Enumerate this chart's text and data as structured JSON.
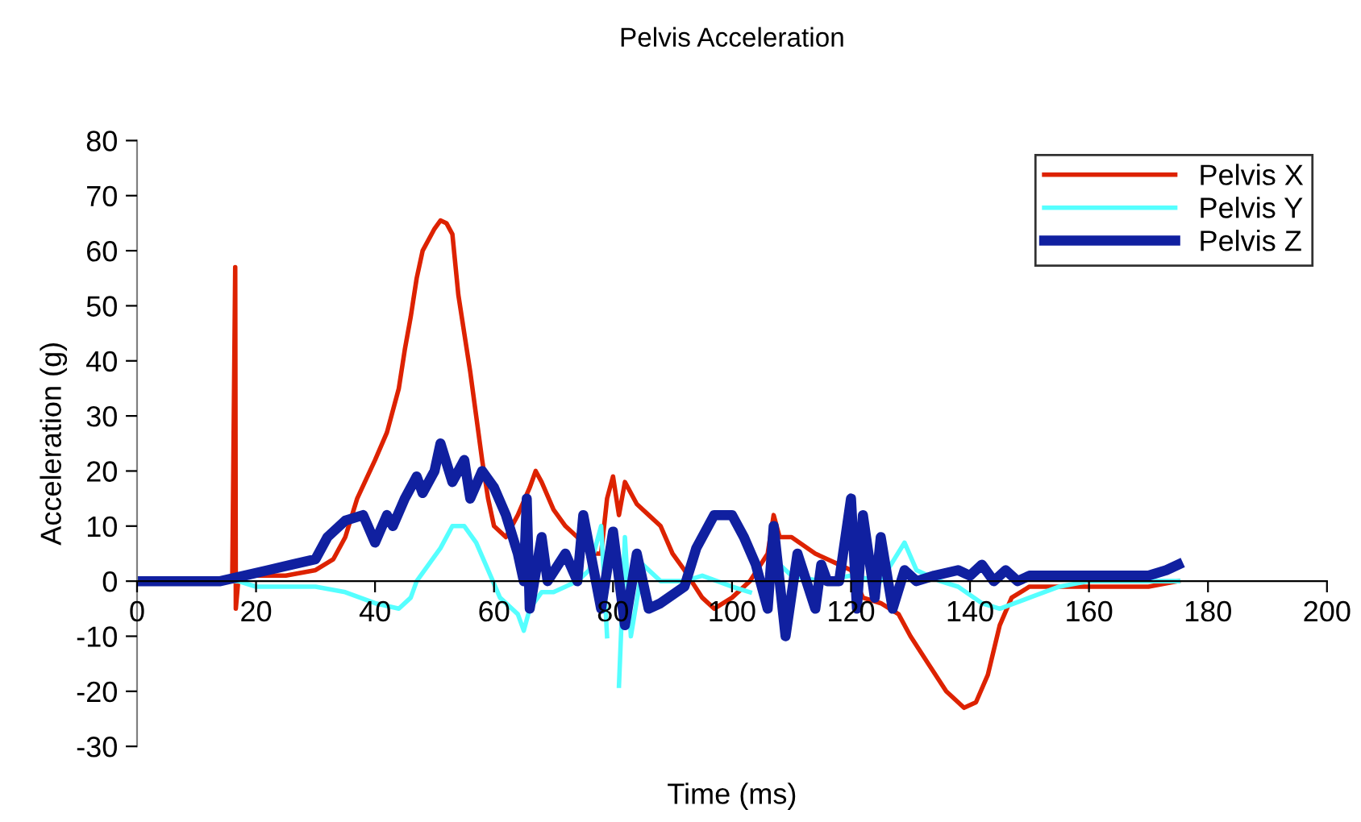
{
  "chart_data": {
    "type": "line",
    "title": "Pelvis Acceleration",
    "xlabel": "Time (ms)",
    "ylabel": "Acceleration (g)",
    "xlim": [
      0,
      200
    ],
    "xticks": [
      0,
      20,
      40,
      60,
      80,
      100,
      120,
      140,
      160,
      180,
      200
    ],
    "ylim": [
      -30,
      80
    ],
    "yticks": [
      -30,
      -20,
      -10,
      0,
      10,
      20,
      30,
      40,
      50,
      60,
      70,
      80
    ],
    "grid": false,
    "legend": "top right",
    "marker": "none",
    "line_style": "solid",
    "series": [
      {
        "name": "Pelvis X",
        "color": "#dd2200",
        "x": [
          0,
          16,
          16.5,
          16.6,
          17,
          18,
          20,
          25,
          30,
          33,
          35,
          37,
          40,
          42,
          44,
          45,
          46,
          47,
          48,
          50,
          51,
          52,
          53,
          54,
          55,
          56,
          57,
          58,
          59,
          60,
          62,
          64,
          66,
          67,
          68,
          70,
          72,
          74,
          76,
          78,
          79,
          80,
          81,
          82,
          84,
          86,
          88,
          90,
          92,
          95,
          97,
          100,
          103,
          106,
          107,
          108,
          110,
          114,
          118,
          120,
          122,
          125,
          128,
          130,
          133,
          136,
          139,
          141,
          143,
          145,
          147,
          150,
          155,
          160,
          170,
          175
        ],
        "values": [
          0,
          0,
          57,
          -5,
          0,
          1,
          1,
          1,
          2,
          4,
          8,
          15,
          22,
          27,
          35,
          42,
          48,
          55,
          60,
          64,
          65.5,
          65,
          63,
          52,
          45,
          38,
          30,
          22,
          15,
          10,
          8,
          12,
          17,
          20,
          18,
          13,
          10,
          8,
          5,
          5,
          15,
          19,
          12,
          18,
          14,
          12,
          10,
          5,
          2,
          -3,
          -5,
          -3,
          0,
          5,
          12,
          8,
          8,
          5,
          3,
          2,
          -3,
          -4,
          -6,
          -10,
          -15,
          -20,
          -23,
          -22,
          -17,
          -8,
          -3,
          -1,
          -1,
          -1,
          -1,
          0
        ]
      },
      {
        "name": "Pelvis Y",
        "color": "#55ffff",
        "x": [
          0,
          17,
          20,
          30,
          35,
          40,
          44,
          46,
          47,
          49,
          51,
          53,
          55,
          57,
          59,
          61,
          64,
          65,
          66,
          68,
          70,
          72,
          74,
          76,
          78,
          79,
          80,
          81,
          82,
          83,
          85,
          88,
          92,
          95,
          100,
          103,
          106,
          108,
          110,
          115,
          120,
          125,
          129,
          131,
          135,
          138,
          142,
          145,
          150,
          155,
          160,
          170,
          175
        ],
        "values": [
          0,
          0,
          -1,
          -1,
          -2,
          -4,
          -5,
          -3,
          0,
          3,
          6,
          10,
          10,
          7,
          2,
          -3,
          -6,
          -9,
          -5,
          -2,
          -2,
          -1,
          0,
          2,
          10,
          -10,
          null,
          -19,
          8,
          -10,
          3,
          0,
          0,
          1,
          -1,
          -2,
          null,
          3,
          1,
          0,
          1,
          0,
          7,
          2,
          0,
          -1,
          -4,
          -5,
          -3,
          -1,
          0,
          0,
          0
        ]
      },
      {
        "name": "Pelvis Z",
        "color": "#1020a0",
        "x": [
          0,
          14,
          18,
          22,
          26,
          30,
          32,
          35,
          38,
          40,
          42,
          43,
          45,
          47,
          48,
          50,
          51,
          53,
          55,
          56,
          58,
          60,
          62,
          64,
          65,
          65.5,
          66,
          68,
          69,
          72,
          74,
          75,
          78,
          80,
          82,
          84,
          86,
          88,
          92,
          94,
          97,
          100,
          102,
          104,
          106,
          107,
          109,
          111,
          114,
          115,
          116,
          118,
          120,
          121,
          122,
          124,
          125,
          127,
          129,
          131,
          134,
          138,
          140,
          142,
          144,
          146,
          148,
          150,
          155,
          160,
          165,
          170,
          173,
          175
        ],
        "values": [
          0,
          0,
          1,
          2,
          3,
          4,
          8,
          11,
          12,
          7,
          12,
          10,
          15,
          19,
          16,
          20,
          25,
          18,
          22,
          15,
          20,
          17,
          12,
          5,
          0,
          15,
          -5,
          8,
          0,
          5,
          0,
          12,
          -5,
          9,
          -8,
          5,
          -5,
          -4,
          -1,
          6,
          12,
          12,
          8,
          3,
          -5,
          10,
          -10,
          5,
          -5,
          3,
          0,
          0,
          15,
          -5,
          12,
          -3,
          8,
          -5,
          2,
          0,
          1,
          2,
          1,
          3,
          0,
          2,
          0,
          1,
          1,
          1,
          1,
          1,
          2,
          3
        ]
      }
    ]
  }
}
